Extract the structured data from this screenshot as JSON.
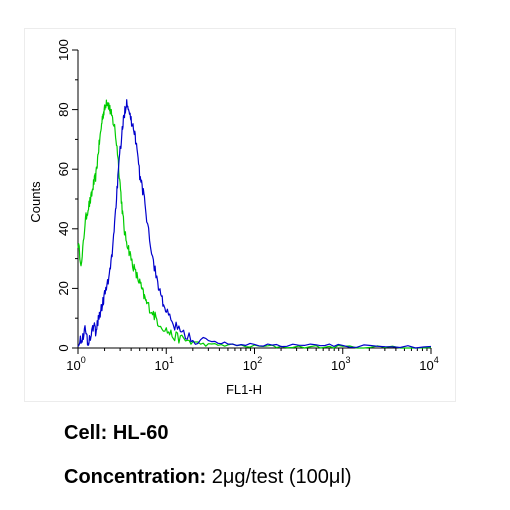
{
  "chart_data": {
    "type": "line",
    "title": "",
    "xlabel": "FL1-H",
    "ylabel": "Counts",
    "xscale": "log",
    "xlim": [
      1,
      10000
    ],
    "ylim": [
      0,
      100
    ],
    "x_ticks": [
      {
        "base": "10",
        "exp": "0"
      },
      {
        "base": "10",
        "exp": "1"
      },
      {
        "base": "10",
        "exp": "2"
      },
      {
        "base": "10",
        "exp": "3"
      },
      {
        "base": "10",
        "exp": "4"
      }
    ],
    "y_ticks": [
      "0",
      "20",
      "40",
      "60",
      "80",
      "100"
    ],
    "grid": false,
    "legend": "none",
    "series": [
      {
        "color": "#00cc00",
        "points": [
          [
            1.0,
            35
          ],
          [
            1.1,
            28
          ],
          [
            1.2,
            42
          ],
          [
            1.3,
            47
          ],
          [
            1.4,
            50
          ],
          [
            1.5,
            55
          ],
          [
            1.6,
            58
          ],
          [
            1.7,
            66
          ],
          [
            1.8,
            72
          ],
          [
            1.9,
            78
          ],
          [
            2.0,
            80
          ],
          [
            2.1,
            83
          ],
          [
            2.2,
            82
          ],
          [
            2.3,
            80
          ],
          [
            2.4,
            78
          ],
          [
            2.6,
            74
          ],
          [
            2.8,
            66
          ],
          [
            3.0,
            55
          ],
          [
            3.2,
            45
          ],
          [
            3.4,
            38
          ],
          [
            3.7,
            34
          ],
          [
            4.0,
            30
          ],
          [
            4.5,
            25
          ],
          [
            5.0,
            22
          ],
          [
            5.5,
            18
          ],
          [
            6.0,
            15
          ],
          [
            7.0,
            12
          ],
          [
            8.0,
            9
          ],
          [
            10,
            6
          ],
          [
            12,
            4
          ],
          [
            15,
            3
          ],
          [
            20,
            2
          ],
          [
            30,
            1
          ],
          [
            50,
            1
          ],
          [
            100,
            0.5
          ],
          [
            200,
            0.5
          ],
          [
            500,
            0.3
          ],
          [
            1000,
            0.3
          ],
          [
            3000,
            0.2
          ],
          [
            10000,
            0.2
          ]
        ]
      },
      {
        "color": "#0000cc",
        "points": [
          [
            1.0,
            1
          ],
          [
            1.1,
            3
          ],
          [
            1.2,
            6
          ],
          [
            1.3,
            2
          ],
          [
            1.4,
            4
          ],
          [
            1.5,
            8
          ],
          [
            1.6,
            5
          ],
          [
            1.7,
            10
          ],
          [
            1.8,
            12
          ],
          [
            1.9,
            15
          ],
          [
            2.0,
            18
          ],
          [
            2.2,
            22
          ],
          [
            2.4,
            30
          ],
          [
            2.6,
            42
          ],
          [
            2.8,
            55
          ],
          [
            3.0,
            66
          ],
          [
            3.2,
            74
          ],
          [
            3.4,
            80
          ],
          [
            3.6,
            83
          ],
          [
            3.8,
            80
          ],
          [
            4.0,
            76
          ],
          [
            4.3,
            74
          ],
          [
            4.6,
            68
          ],
          [
            5.0,
            58
          ],
          [
            5.5,
            52
          ],
          [
            6.0,
            44
          ],
          [
            7.0,
            30
          ],
          [
            8.0,
            22
          ],
          [
            9.0,
            16
          ],
          [
            10,
            12
          ],
          [
            12,
            8
          ],
          [
            15,
            5
          ],
          [
            20,
            3
          ],
          [
            30,
            2
          ],
          [
            50,
            1.5
          ],
          [
            100,
            1
          ],
          [
            200,
            1
          ],
          [
            500,
            0.8
          ],
          [
            1000,
            0.8
          ],
          [
            3000,
            0.5
          ],
          [
            10000,
            0.5
          ]
        ]
      }
    ]
  },
  "captions": {
    "cell_label": "Cell:",
    "cell_value": "HL-60",
    "concentration_label": "Concentration:",
    "concentration_value": "2μg/test (100μl)"
  }
}
